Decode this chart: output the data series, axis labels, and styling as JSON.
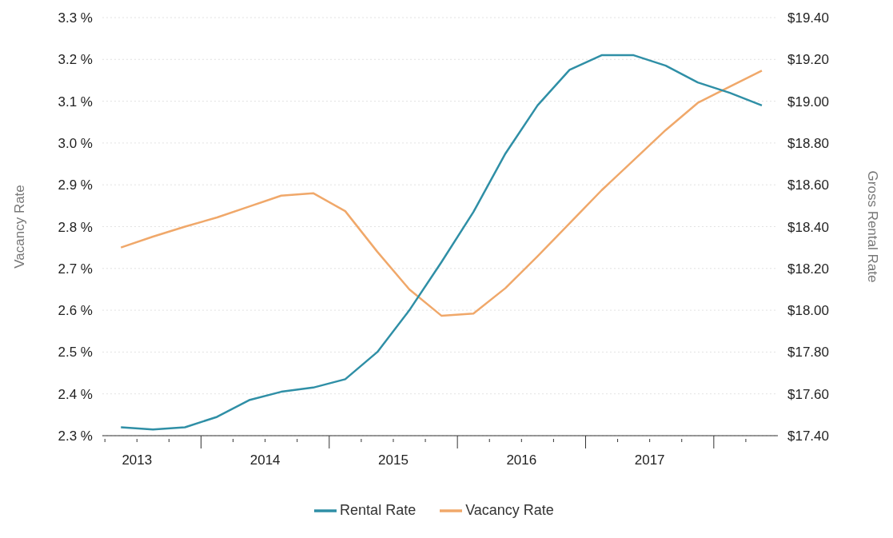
{
  "chart_data": {
    "type": "line",
    "ylabel": "Vacancy Rate",
    "y2label": "Gross Rental Rate",
    "x": [
      2013.375,
      2013.625,
      2013.875,
      2014.125,
      2014.375,
      2014.625,
      2014.875,
      2015.125,
      2015.375,
      2015.625,
      2015.875,
      2016.125,
      2016.375,
      2016.625,
      2016.875,
      2017.125,
      2017.375,
      2017.625,
      2017.875,
      2018.125,
      2018.375
    ],
    "series": [
      {
        "name": "Vacancy Rate",
        "color": "#f0a86a",
        "values": [
          2.75,
          2.776,
          2.8,
          2.822,
          2.848,
          2.874,
          2.88,
          2.837,
          2.74,
          2.65,
          2.587,
          2.592,
          2.653,
          2.729,
          2.808,
          2.887,
          2.959,
          3.031,
          3.096,
          3.135,
          3.173
        ]
      },
      {
        "name": "Rental Rate",
        "color": "#2f8fa6",
        "axis": "y2",
        "values": [
          17.44,
          17.43,
          17.44,
          17.49,
          17.57,
          17.61,
          17.63,
          17.67,
          17.8,
          18.0,
          18.23,
          18.47,
          18.75,
          18.98,
          19.15,
          19.22,
          19.22,
          19.17,
          19.09,
          19.04,
          18.98
        ]
      }
    ],
    "xlim": [
      2013.23,
      2018.5
    ],
    "xticks": [
      {
        "value": 2013.25,
        "label": null
      },
      {
        "value": 2013.5,
        "label": "2013"
      },
      {
        "value": 2013.75,
        "label": null
      },
      {
        "value": 2014,
        "label": null
      },
      {
        "value": 2014.25,
        "label": null
      },
      {
        "value": 2014.5,
        "label": "2014"
      },
      {
        "value": 2014.75,
        "label": null
      },
      {
        "value": 2015,
        "label": null
      },
      {
        "value": 2015.25,
        "label": null
      },
      {
        "value": 2015.5,
        "label": "2015"
      },
      {
        "value": 2015.75,
        "label": null
      },
      {
        "value": 2016,
        "label": null
      },
      {
        "value": 2016.25,
        "label": null
      },
      {
        "value": 2016.5,
        "label": "2016"
      },
      {
        "value": 2016.75,
        "label": null
      },
      {
        "value": 2017,
        "label": null
      },
      {
        "value": 2017.25,
        "label": null
      },
      {
        "value": 2017.5,
        "label": "2017"
      },
      {
        "value": 2017.75,
        "label": null
      },
      {
        "value": 2018,
        "label": null
      },
      {
        "value": 2018.25,
        "label": null
      }
    ],
    "ylim": [
      2.3,
      3.3
    ],
    "yticks": [
      {
        "value": 2.3,
        "label": "2.3 %"
      },
      {
        "value": 2.4,
        "label": "2.4 %"
      },
      {
        "value": 2.5,
        "label": "2.5 %"
      },
      {
        "value": 2.6,
        "label": "2.6 %"
      },
      {
        "value": 2.7,
        "label": "2.7 %"
      },
      {
        "value": 2.8,
        "label": "2.8 %"
      },
      {
        "value": 2.9,
        "label": "2.9 %"
      },
      {
        "value": 3.0,
        "label": "3.0 %"
      },
      {
        "value": 3.1,
        "label": "3.1 %"
      },
      {
        "value": 3.2,
        "label": "3.2 %"
      },
      {
        "value": 3.3,
        "label": "3.3 %"
      }
    ],
    "y2lim": [
      17.4,
      19.4
    ],
    "y2ticks": [
      {
        "value": 17.4,
        "label": "$17.40"
      },
      {
        "value": 17.6,
        "label": "$17.60"
      },
      {
        "value": 17.8,
        "label": "$17.80"
      },
      {
        "value": 18.0,
        "label": "$18.00"
      },
      {
        "value": 18.2,
        "label": "$18.20"
      },
      {
        "value": 18.4,
        "label": "$18.40"
      },
      {
        "value": 18.6,
        "label": "$18.60"
      },
      {
        "value": 18.8,
        "label": "$18.80"
      },
      {
        "value": 19.0,
        "label": "$19.00"
      },
      {
        "value": 19.2,
        "label": "$19.20"
      },
      {
        "value": 19.4,
        "label": "$19.40"
      }
    ],
    "grid": "y",
    "legend": "bottom",
    "marker": "none",
    "line_style": "solid"
  }
}
